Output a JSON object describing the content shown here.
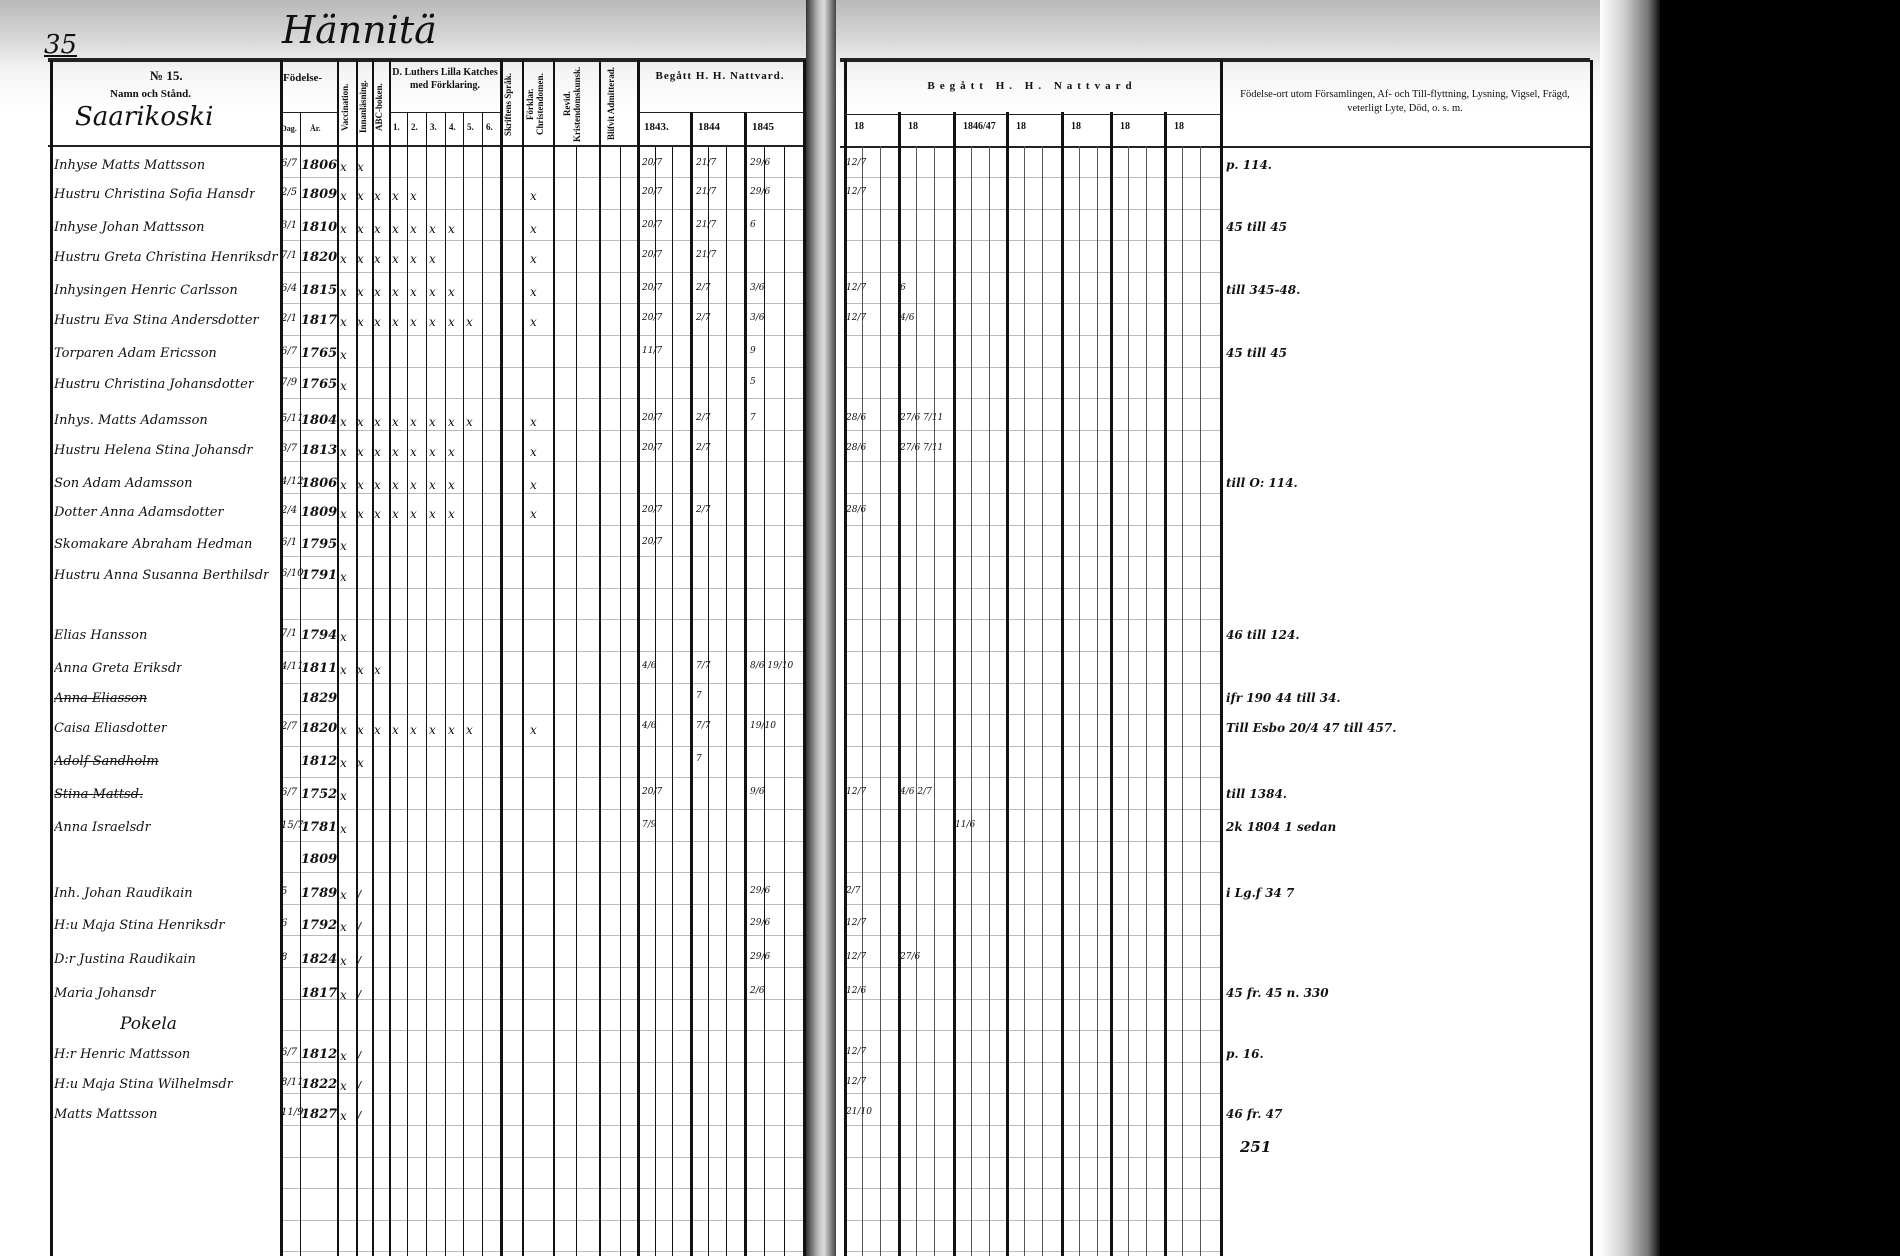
{
  "page_number": "35",
  "village": "Hännitä",
  "left_header": {
    "number": "№ 15.",
    "name_label": "Namn och Stånd.",
    "farm": "Saarikoski",
    "birth_label": "Födelse-",
    "day_label": "Dag.",
    "year_label": "År.",
    "vaccination": "Vaccination.",
    "reading": "Innanläsning.",
    "abc": "ABC-boken.",
    "catechism": "D. Luthers Lilla Katches med Förklaring.",
    "catechism_parts": [
      "1.",
      "2.",
      "3.",
      "4.",
      "5.",
      "6."
    ],
    "scripture": "Skriftens Språk.",
    "christendom": "Förklar. Christendomen.",
    "revision": "Revid. Kristendomskunsk.",
    "admitted": "Blifvit Admitterad.",
    "communion": "Begått H. H. Nattvard.",
    "years": [
      "1843.",
      "1844",
      "1845"
    ]
  },
  "right_header": {
    "communion": "Begått H. H. Nattvard",
    "years": [
      "18",
      "18",
      "1846/47",
      "18",
      "18",
      "18",
      "18"
    ],
    "notes": "Födelse-ort utom Församlingen, Af- och Till-flyttning, Lysning, Vigsel, Frägd, veterligt Lyte, Död, o. s. m."
  },
  "rows": [
    {
      "name": "Inhyse Matts Mattsson",
      "day": "6/7",
      "year": "1806",
      "marks": "xx",
      "comm": [
        "20/7",
        "21/7",
        "29/6"
      ],
      "right": [
        "12/7"
      ],
      "note": "p. 114."
    },
    {
      "name": "Hustru Christina Sofia Hansdr",
      "day": "2/5",
      "year": "1809",
      "marks": "xxxxx",
      "comm": [
        "20/7",
        "21/7",
        "29/6"
      ],
      "right": [
        "12/7"
      ],
      "note": ""
    },
    {
      "name": "Inhyse Johan Mattsson",
      "day": "3/1",
      "year": "1810",
      "marks": "xxxxxxx",
      "comm": [
        "20/7",
        "21/7",
        "6"
      ],
      "right": [],
      "note": "45 till 45"
    },
    {
      "name": "Hustru Greta Christina Henriksdr",
      "day": "7/1",
      "year": "1820",
      "marks": "xxxxxx",
      "comm": [
        "20/7",
        "21/7",
        ""
      ],
      "right": [],
      "note": ""
    },
    {
      "name": "Inhysingen Henric Carlsson",
      "day": "6/4",
      "year": "1815",
      "marks": "xxxxxxx",
      "comm": [
        "20/7",
        "2/7",
        "3/6"
      ],
      "right": [
        "12/7",
        "6"
      ],
      "note": "till 345-48."
    },
    {
      "name": "Hustru Eva Stina Andersdotter",
      "day": "2/1",
      "year": "1817",
      "marks": "xxxxxxxx",
      "comm": [
        "20/7",
        "2/7",
        "3/6"
      ],
      "right": [
        "12/7",
        "4/6"
      ],
      "note": ""
    },
    {
      "name": "Torparen Adam Ericsson",
      "day": "6/7",
      "year": "1765",
      "marks": "x",
      "comm": [
        "11/7",
        "",
        "9"
      ],
      "right": [],
      "note": "45 till 45"
    },
    {
      "name": "Hustru Christina Johansdotter",
      "day": "7/9",
      "year": "1765",
      "marks": "x",
      "comm": [
        "",
        "",
        "5"
      ],
      "right": [],
      "note": ""
    },
    {
      "name": "Inhys. Matts Adamsson",
      "day": "5/11",
      "year": "1804",
      "marks": "xxxxxxxx",
      "comm": [
        "20/7",
        "2/7",
        "7"
      ],
      "right": [
        "28/6",
        "27/6 7/11"
      ],
      "note": ""
    },
    {
      "name": "Hustru Helena Stina Johansdr",
      "day": "3/7",
      "year": "1813",
      "marks": "xxxxxxx",
      "comm": [
        "20/7",
        "2/7",
        ""
      ],
      "right": [
        "28/6",
        "27/6 7/11"
      ],
      "note": ""
    },
    {
      "name": "Son Adam Adamsson",
      "day": "4/12",
      "year": "1806",
      "marks": "xxxxxxx",
      "comm": [
        "",
        "",
        ""
      ],
      "right": [
        "",
        "",
        ""
      ],
      "note": "till O: 114."
    },
    {
      "name": "Dotter Anna Adamsdotter",
      "day": "2/4",
      "year": "1809",
      "marks": "xxxxxxx",
      "comm": [
        "20/7",
        "2/7",
        ""
      ],
      "right": [
        "28/6"
      ],
      "note": ""
    },
    {
      "name": "Skomakare Abraham Hedman",
      "day": "6/1",
      "year": "1795",
      "marks": "x",
      "comm": [
        "20/7",
        "",
        ""
      ],
      "right": [],
      "note": ""
    },
    {
      "name": "Hustru Anna Susanna Berthilsdr",
      "day": "6/10",
      "year": "1791",
      "marks": "x",
      "comm": [
        "",
        "",
        ""
      ],
      "right": [],
      "note": ""
    },
    {
      "name": "Elias Hansson",
      "day": "7/1",
      "year": "1794",
      "marks": "x",
      "comm": [
        "",
        "",
        ""
      ],
      "right": [],
      "note": "46 till 124."
    },
    {
      "name": "Anna Greta Eriksdr",
      "day": "4/11",
      "year": "1811",
      "marks": "xxx",
      "comm": [
        "4/6",
        "7/7",
        "8/6 19/10"
      ],
      "right": [],
      "note": ""
    },
    {
      "name": "Anna Eliasson",
      "day": "",
      "year": "1829",
      "marks": "",
      "comm": [
        "",
        "7",
        ""
      ],
      "right": [],
      "note": "ifr 190 44 till 34."
    },
    {
      "name": "Caisa Eliasdotter",
      "day": "2/7",
      "year": "1820",
      "marks": "xxxxxxxx",
      "comm": [
        "4/6",
        "7/7",
        "19/10"
      ],
      "right": [],
      "note": "Till Esbo 20/4 47 till 457."
    },
    {
      "name": "Adolf Sandholm",
      "day": "",
      "year": "1812",
      "marks": "xx",
      "comm": [
        "",
        "7",
        ""
      ],
      "right": [],
      "note": ""
    },
    {
      "name": "Stina Mattsd.",
      "day": "6/7",
      "year": "1752",
      "marks": "x",
      "comm": [
        "20/7",
        "",
        "9/6"
      ],
      "right": [
        "12/7",
        "4/6 2/7"
      ],
      "note": "till 1384."
    },
    {
      "name": "Anna Israelsdr",
      "day": "15/7",
      "year": "1781",
      "marks": "x",
      "comm": [
        "7/9",
        "",
        ""
      ],
      "right": [
        "",
        "",
        "11/6"
      ],
      "note": "2k 1804 1 sedan"
    },
    {
      "name": "",
      "day": "",
      "year": "1809",
      "marks": "",
      "comm": [
        "",
        "",
        ""
      ],
      "right": [],
      "note": ""
    },
    {
      "name": "Inh. Johan Raudikain",
      "day": "5",
      "year": "1789",
      "marks": "x/",
      "comm": [
        "",
        "",
        "29/6"
      ],
      "right": [
        "2/7"
      ],
      "note": "i Lg.f 34 7"
    },
    {
      "name": "H:u Maja Stina Henriksdr",
      "day": "6",
      "year": "1792",
      "marks": "x/",
      "comm": [
        "",
        "",
        "29/6"
      ],
      "right": [
        "12/7"
      ],
      "note": ""
    },
    {
      "name": "D:r Justina Raudikain",
      "day": "8",
      "year": "1824",
      "marks": "x/",
      "comm": [
        "",
        "",
        "29/6"
      ],
      "right": [
        "12/7",
        "27/6"
      ],
      "note": ""
    },
    {
      "name": "Maria Johansdr",
      "day": "",
      "year": "1817",
      "marks": "x/",
      "comm": [
        "",
        "",
        "2/6"
      ],
      "right": [
        "12/6"
      ],
      "note": "45 fr. 45 n. 330"
    },
    {
      "name": "Pokela",
      "day": "",
      "year": "",
      "marks": "",
      "comm": [
        "",
        "",
        ""
      ],
      "right": [],
      "note": ""
    },
    {
      "name": "H:r Henric Mattsson",
      "day": "6/7",
      "year": "1812",
      "marks": "x/",
      "comm": [
        "",
        "",
        ""
      ],
      "right": [
        "12/7"
      ],
      "note": "p. 16."
    },
    {
      "name": "H:u Maja Stina Wilhelmsdr",
      "day": "8/11",
      "year": "1822",
      "marks": "x/",
      "comm": [
        "",
        "",
        ""
      ],
      "right": [
        "12/7"
      ],
      "note": ""
    },
    {
      "name": "Matts Mattsson",
      "day": "11/9",
      "year": "1827",
      "marks": "x/",
      "comm": [
        "",
        "",
        ""
      ],
      "right": [
        "21/10"
      ],
      "note": "46 fr. 47"
    }
  ],
  "extra_note": "251"
}
